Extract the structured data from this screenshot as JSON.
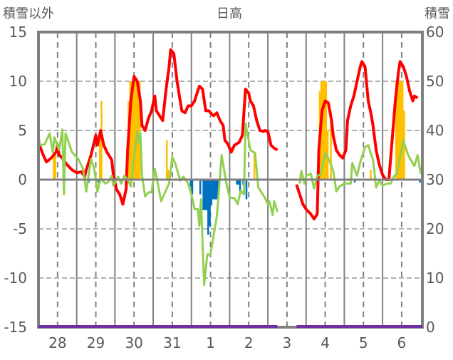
{
  "chart_data": {
    "type": "line",
    "title": "日高",
    "ylabel_left": "積雪以外",
    "ylabel_right": "積雪",
    "xunit": "hours since start of day 28",
    "xlim": [
      0,
      241
    ],
    "ylim_left": [
      -15,
      15
    ],
    "ylim_right": [
      0,
      60
    ],
    "yticks_left": [
      "15",
      "10",
      "5",
      "0",
      "-5",
      "-10",
      "-15"
    ],
    "yticks_right": [
      "60",
      "50",
      "40",
      "30",
      "20",
      "10",
      "0"
    ],
    "day_labels": [
      "28",
      "29",
      "30",
      "31",
      "1",
      "2",
      "3",
      "4",
      "5",
      "6"
    ],
    "grid": true,
    "colors": {
      "red": "#ff0000",
      "green": "#92d050",
      "orange": "#ffc000",
      "blue": "#0070c0",
      "purple": "#7030a0",
      "frame": "#808080"
    },
    "series": [
      {
        "name": "red-line",
        "axis": "left",
        "color": "#ff0000",
        "points": [
          [
            0,
            3.8
          ],
          [
            3,
            2.5
          ],
          [
            5,
            1.8
          ],
          [
            8,
            2.2
          ],
          [
            11,
            2.8
          ],
          [
            12,
            3.5
          ],
          [
            13,
            2.5
          ],
          [
            15,
            2.2
          ],
          [
            18,
            1.5
          ],
          [
            21,
            1.0
          ],
          [
            24,
            0.7
          ],
          [
            27,
            0.8
          ],
          [
            29,
            0.3
          ],
          [
            30,
            1.0
          ],
          [
            33,
            2.5
          ],
          [
            36,
            4.5
          ],
          [
            37,
            3.5
          ],
          [
            39,
            5.0
          ],
          [
            41,
            3.5
          ],
          [
            43,
            2.8
          ],
          [
            46,
            2.0
          ],
          [
            47,
            0.5
          ],
          [
            49,
            -1
          ],
          [
            51,
            -1.5
          ],
          [
            53,
            -2.5
          ],
          [
            55,
            -1
          ],
          [
            56,
            3
          ],
          [
            58,
            8
          ],
          [
            60,
            10.5
          ],
          [
            62,
            10
          ],
          [
            64,
            8
          ],
          [
            65,
            5.5
          ],
          [
            67,
            5
          ],
          [
            69,
            6.2
          ],
          [
            71,
            7
          ],
          [
            73,
            8.5
          ],
          [
            74,
            7
          ],
          [
            76,
            6.5
          ],
          [
            78,
            6
          ],
          [
            80,
            9
          ],
          [
            82,
            11.5
          ],
          [
            83,
            13.2
          ],
          [
            85,
            12.8
          ],
          [
            87,
            10
          ],
          [
            89,
            8
          ],
          [
            90,
            7
          ],
          [
            92,
            6.8
          ],
          [
            94,
            7.5
          ],
          [
            96,
            7.5
          ],
          [
            98,
            8
          ],
          [
            99,
            8.5
          ],
          [
            101,
            9.5
          ],
          [
            103,
            9.2
          ],
          [
            105,
            7
          ],
          [
            107,
            7
          ],
          [
            108,
            6.8
          ],
          [
            110,
            6.5
          ],
          [
            112,
            6.8
          ],
          [
            114,
            6
          ],
          [
            116,
            5.5
          ],
          [
            117,
            4
          ],
          [
            119,
            3.6
          ],
          [
            121,
            2.8
          ],
          [
            123,
            3.5
          ],
          [
            124,
            3.6
          ],
          [
            126,
            3.8
          ],
          [
            128,
            4.5
          ],
          [
            130,
            9.2
          ],
          [
            132,
            8.8
          ],
          [
            133,
            8
          ],
          [
            135,
            7.5
          ],
          [
            137,
            6
          ],
          [
            139,
            5
          ],
          [
            141,
            4.9
          ],
          [
            142,
            5
          ],
          [
            144,
            4.9
          ],
          [
            146,
            3.5
          ],
          [
            148,
            3.2
          ],
          [
            150,
            3.0
          ],
          [
            155,
            null
          ],
          [
            162,
            -0.5
          ],
          [
            164,
            -1.5
          ],
          [
            166,
            -2.5
          ],
          [
            168,
            -3
          ],
          [
            171,
            -3.5
          ],
          [
            173,
            -4
          ],
          [
            175,
            -3.5
          ],
          [
            176,
            3
          ],
          [
            178,
            7
          ],
          [
            180,
            8
          ],
          [
            182,
            7.8
          ],
          [
            184,
            6
          ],
          [
            185,
            4.5
          ],
          [
            187,
            3
          ],
          [
            189,
            2.5
          ],
          [
            191,
            2.2
          ],
          [
            193,
            3
          ],
          [
            194,
            6
          ],
          [
            196,
            7.5
          ],
          [
            198,
            8.5
          ],
          [
            200,
            10
          ],
          [
            202,
            11.5
          ],
          [
            203,
            12
          ],
          [
            205,
            11.5
          ],
          [
            207,
            8
          ],
          [
            209,
            6.5
          ],
          [
            210,
            5.5
          ],
          [
            212,
            3
          ],
          [
            214,
            1.5
          ],
          [
            216,
            0.5
          ],
          [
            218,
            0
          ],
          [
            220,
            0
          ],
          [
            222,
            4
          ],
          [
            224,
            8
          ],
          [
            226,
            11
          ],
          [
            227,
            12
          ],
          [
            229,
            11.5
          ],
          [
            231,
            10.5
          ],
          [
            233,
            9
          ],
          [
            235,
            8
          ],
          [
            236,
            8.5
          ],
          [
            238,
            8.3
          ]
        ]
      },
      {
        "name": "green-line",
        "axis": "left",
        "color": "#92d050",
        "points": [
          [
            0,
            4.5
          ],
          [
            1,
            3.5
          ],
          [
            4,
            3.6
          ],
          [
            7,
            4.7
          ],
          [
            9,
            2.8
          ],
          [
            10,
            4.3
          ],
          [
            13,
            3
          ],
          [
            15,
            5.1
          ],
          [
            16,
            -1.5
          ],
          [
            17,
            4.7
          ],
          [
            21,
            2.8
          ],
          [
            25,
            2.1
          ],
          [
            28,
            1.1
          ],
          [
            30,
            -1.2
          ],
          [
            33,
            2.1
          ],
          [
            35,
            1.1
          ],
          [
            37,
            -1.2
          ],
          [
            39,
            0.1
          ],
          [
            42,
            -0.4
          ],
          [
            44,
            -0.2
          ],
          [
            46,
            0.4
          ],
          [
            47,
            -0.6
          ],
          [
            50,
            0.3
          ],
          [
            52,
            -0.4
          ],
          [
            54,
            0.4
          ],
          [
            56,
            0
          ],
          [
            58,
            -0.7
          ],
          [
            60,
            2.3
          ],
          [
            62,
            4.9
          ],
          [
            63,
            3.8
          ],
          [
            64,
            4.7
          ],
          [
            65,
            0.4
          ],
          [
            67,
            -1.7
          ],
          [
            69,
            -1.3
          ],
          [
            71,
            -1.3
          ],
          [
            73,
            1.1
          ],
          [
            74,
            0.4
          ],
          [
            77,
            -2.2
          ],
          [
            80,
            -1.1
          ],
          [
            82,
            -0.4
          ],
          [
            84,
            2.3
          ],
          [
            86,
            1.6
          ],
          [
            89,
            -0.1
          ],
          [
            91,
            0.3
          ],
          [
            94,
            -0.4
          ],
          [
            96,
            -1.5
          ],
          [
            98,
            -3
          ],
          [
            100,
            -3
          ],
          [
            101,
            -4.7
          ],
          [
            102,
            -2
          ],
          [
            104,
            -10.7
          ],
          [
            106,
            -7.6
          ],
          [
            108,
            -7.6
          ],
          [
            109,
            -6.6
          ],
          [
            112,
            -3.7
          ],
          [
            115,
            2.5
          ],
          [
            118,
            -0.4
          ],
          [
            120,
            -1.8
          ],
          [
            123,
            -1.9
          ],
          [
            125,
            -2.5
          ],
          [
            127,
            -1.1
          ],
          [
            129,
            -1.5
          ],
          [
            130,
            5.7
          ],
          [
            132,
            4
          ],
          [
            133,
            3
          ],
          [
            136,
            2.7
          ],
          [
            138,
            -0.8
          ],
          [
            142,
            -1.8
          ],
          [
            144,
            -2.5
          ],
          [
            145,
            -2.2
          ],
          [
            147,
            -3.6
          ],
          [
            148,
            -2.2
          ],
          [
            150,
            -3.3
          ],
          [
            155,
            null
          ],
          [
            164,
            -0.4
          ],
          [
            165,
            0.9
          ],
          [
            167,
            -0.4
          ],
          [
            168,
            0.4
          ],
          [
            171,
            0.6
          ],
          [
            173,
            -0.9
          ],
          [
            175,
            0.4
          ],
          [
            177,
            0.5
          ],
          [
            180,
            2.7
          ],
          [
            181,
            2.5
          ],
          [
            183,
            1.8
          ],
          [
            185,
            0.9
          ],
          [
            187,
            -1.2
          ],
          [
            189,
            -0.7
          ],
          [
            192,
            -0.4
          ],
          [
            194,
            -0.4
          ],
          [
            196,
            -0.4
          ],
          [
            197,
            1.7
          ],
          [
            200,
            0.4
          ],
          [
            202,
            1.8
          ],
          [
            205,
            3.3
          ],
          [
            207,
            3.5
          ],
          [
            210,
            2
          ],
          [
            212,
            -0.8
          ],
          [
            214,
            -0.1
          ],
          [
            216,
            -0.6
          ],
          [
            219,
            -0.4
          ],
          [
            221,
            -0.4
          ],
          [
            223,
            0.3
          ],
          [
            225,
            0.6
          ],
          [
            229,
            4
          ],
          [
            232,
            2.5
          ],
          [
            236,
            1.4
          ],
          [
            238,
            2.5
          ],
          [
            240,
            0.6
          ]
        ]
      },
      {
        "name": "purple-line",
        "axis": "right",
        "color": "#7030a0",
        "points": [
          [
            0,
            0
          ],
          [
            150,
            0
          ],
          [
            155,
            null
          ],
          [
            162,
            0
          ],
          [
            241,
            0
          ]
        ]
      }
    ],
    "bars": [
      {
        "name": "orange-bars",
        "axis": "left",
        "color": "#ffc000",
        "points": [
          [
            9,
            2.8
          ],
          [
            10,
            2.8
          ],
          [
            38,
            4.2
          ],
          [
            39,
            8
          ],
          [
            56,
            8
          ],
          [
            57,
            10
          ],
          [
            58,
            10
          ],
          [
            59,
            10
          ],
          [
            60,
            10
          ],
          [
            61,
            10
          ],
          [
            62,
            10
          ],
          [
            63,
            10
          ],
          [
            80,
            4
          ],
          [
            81,
            1
          ],
          [
            135,
            2.7
          ],
          [
            176,
            9
          ],
          [
            177,
            10
          ],
          [
            178,
            10
          ],
          [
            179,
            10
          ],
          [
            180,
            10
          ],
          [
            181,
            5
          ],
          [
            183,
            7
          ],
          [
            208,
            1
          ],
          [
            224,
            10
          ],
          [
            225,
            10
          ],
          [
            226,
            10
          ],
          [
            227,
            10
          ],
          [
            228,
            10
          ],
          [
            229,
            7
          ]
        ]
      },
      {
        "name": "blue-bars",
        "axis": "left",
        "color": "#0070c0",
        "points": [
          [
            31,
            -0.3
          ],
          [
            37,
            -0.3
          ],
          [
            95,
            -0.7
          ],
          [
            96,
            -1.5
          ],
          [
            101,
            -1.5
          ],
          [
            103,
            -3.1
          ],
          [
            104,
            -3.1
          ],
          [
            105,
            -3.1
          ],
          [
            106,
            -5.6
          ],
          [
            107,
            -4.7
          ],
          [
            108,
            -2.6
          ],
          [
            109,
            -2
          ],
          [
            110,
            -2
          ],
          [
            111,
            -2
          ],
          [
            112,
            -2
          ],
          [
            124,
            -0.5
          ],
          [
            125,
            -0.5
          ],
          [
            126,
            -1.2
          ],
          [
            128,
            -0.5
          ],
          [
            130,
            -2
          ],
          [
            198,
            -0.3
          ],
          [
            239,
            -0.3
          ]
        ]
      }
    ]
  }
}
